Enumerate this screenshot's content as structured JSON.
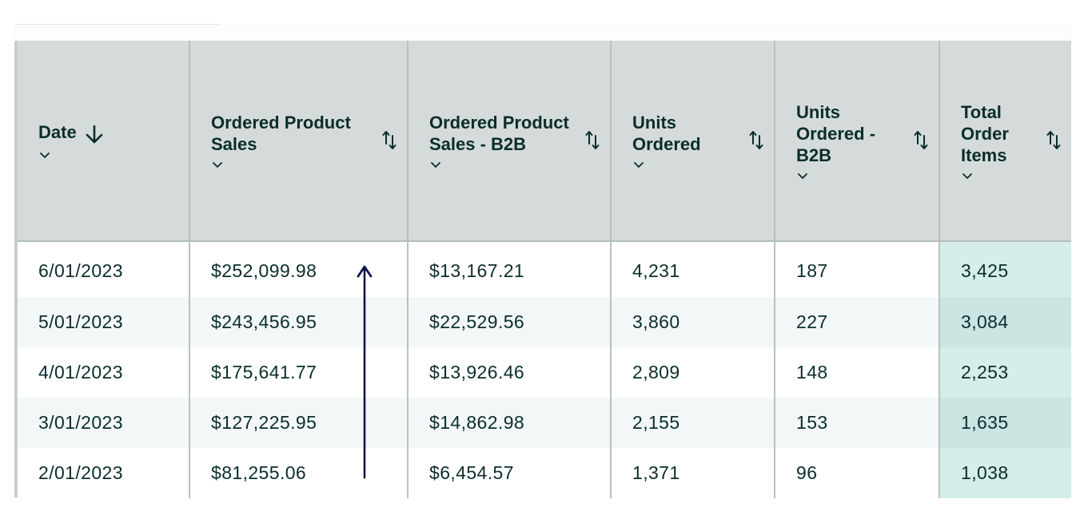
{
  "table": {
    "columns": [
      {
        "label": "Date"
      },
      {
        "label": "Ordered Product Sales"
      },
      {
        "label": "Ordered Product Sales - B2B"
      },
      {
        "label": "Units Ordered"
      },
      {
        "label": "Units Ordered - B2B"
      },
      {
        "label": "Total Order Items"
      }
    ],
    "rows": [
      [
        "6/01/2023",
        "$252,099.98",
        "$13,167.21",
        "4,231",
        "187",
        "3,425"
      ],
      [
        "5/01/2023",
        "$243,456.95",
        "$22,529.56",
        "3,860",
        "227",
        "3,084"
      ],
      [
        "4/01/2023",
        "$175,641.77",
        "$13,926.46",
        "2,809",
        "148",
        "2,253"
      ],
      [
        "3/01/2023",
        "$127,225.95",
        "$14,862.98",
        "2,155",
        "153",
        "1,635"
      ],
      [
        "2/01/2023",
        "$81,255.06",
        "$6,454.57",
        "1,371",
        "96",
        "1,038"
      ]
    ],
    "sorted_column": "Date",
    "sort_direction": "descending",
    "highlighted_column": "Total Order Items"
  },
  "icons": {
    "sort": "sort-toggle-icon",
    "chevron": "chevron-down-icon",
    "sort_active": "arrow-down-icon",
    "annotation": "arrow-up-icon"
  },
  "colors": {
    "header_bg": "#d4dbda",
    "text": "#0b2d2b",
    "row_alt_bg": "#f3f7f7",
    "highlight_bg": "#d6eeea",
    "annotation_arrow": "#0f1250"
  }
}
